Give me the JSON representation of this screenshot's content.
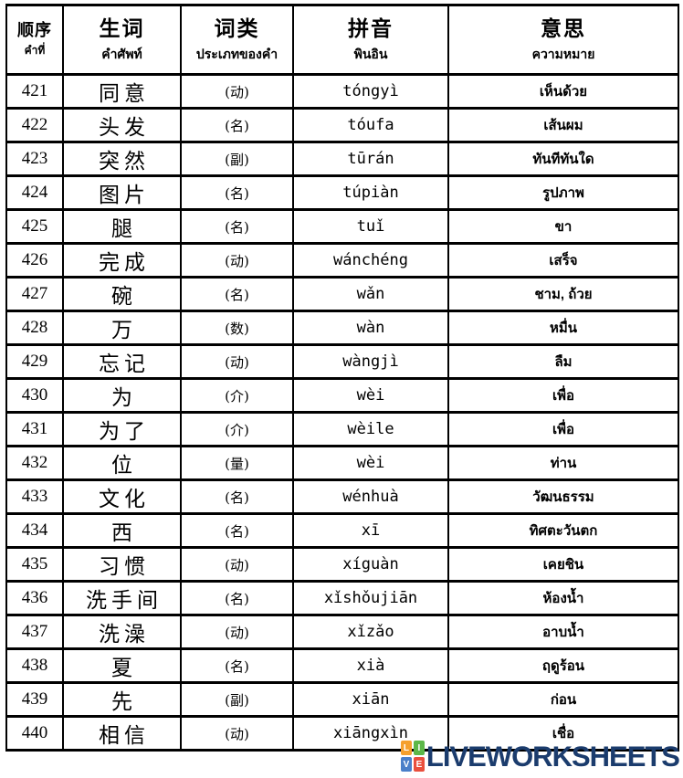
{
  "table": {
    "columns": [
      {
        "zh": "顺序",
        "th": "คำที่"
      },
      {
        "zh": "生词",
        "th": "คำศัพท์"
      },
      {
        "zh": "词类",
        "th": "ประเภทของคำ"
      },
      {
        "zh": "拼音",
        "th": "พินอิน"
      },
      {
        "zh": "意思",
        "th": "ความหมาย"
      }
    ],
    "rows": [
      {
        "no": "421",
        "word": "同意",
        "type": "(动)",
        "pinyin": "tóngyì",
        "meaning": "เห็นด้วย"
      },
      {
        "no": "422",
        "word": "头发",
        "type": "(名)",
        "pinyin": "tóufa",
        "meaning": "เส้นผม"
      },
      {
        "no": "423",
        "word": "突然",
        "type": "(副)",
        "pinyin": "tūrán",
        "meaning": "ทันทีทันใด"
      },
      {
        "no": "424",
        "word": "图片",
        "type": "(名)",
        "pinyin": "túpiàn",
        "meaning": "รูปภาพ"
      },
      {
        "no": "425",
        "word": "腿",
        "type": "(名)",
        "pinyin": "tuǐ",
        "meaning": "ขา"
      },
      {
        "no": "426",
        "word": "完成",
        "type": "(动)",
        "pinyin": "wánchéng",
        "meaning": "เสร็จ"
      },
      {
        "no": "427",
        "word": "碗",
        "type": "(名)",
        "pinyin": "wǎn",
        "meaning": "ชาม, ถ้วย"
      },
      {
        "no": "428",
        "word": "万",
        "type": "(数)",
        "pinyin": "wàn",
        "meaning": "หมื่น"
      },
      {
        "no": "429",
        "word": "忘记",
        "type": "(动)",
        "pinyin": "wàngjì",
        "meaning": "ลืม"
      },
      {
        "no": "430",
        "word": "为",
        "type": "(介)",
        "pinyin": "wèi",
        "meaning": "เพื่อ"
      },
      {
        "no": "431",
        "word": "为了",
        "type": "(介)",
        "pinyin": "wèile",
        "meaning": "เพื่อ"
      },
      {
        "no": "432",
        "word": "位",
        "type": "(量)",
        "pinyin": "wèi",
        "meaning": "ท่าน"
      },
      {
        "no": "433",
        "word": "文化",
        "type": "(名)",
        "pinyin": "wénhuà",
        "meaning": "วัฒนธรรม"
      },
      {
        "no": "434",
        "word": "西",
        "type": "(名)",
        "pinyin": "xī",
        "meaning": "ทิศตะวันตก"
      },
      {
        "no": "435",
        "word": "习惯",
        "type": "(动)",
        "pinyin": "xíguàn",
        "meaning": "เคยชิน"
      },
      {
        "no": "436",
        "word": "洗手间",
        "type": "(名)",
        "pinyin": "xǐshǒujiān",
        "meaning": "ห้องน้ำ"
      },
      {
        "no": "437",
        "word": "洗澡",
        "type": "(动)",
        "pinyin": "xǐzǎo",
        "meaning": "อาบน้ำ"
      },
      {
        "no": "438",
        "word": "夏",
        "type": "(名)",
        "pinyin": "xià",
        "meaning": "ฤดูร้อน"
      },
      {
        "no": "439",
        "word": "先",
        "type": "(副)",
        "pinyin": "xiān",
        "meaning": "ก่อน"
      },
      {
        "no": "440",
        "word": "相信",
        "type": "(动)",
        "pinyin": "xiāngxìn",
        "meaning": "เชื่อ"
      }
    ]
  },
  "footer": {
    "logo_text": "LIVEWORKSHEETS",
    "logo_text_color": "#1b3c6d",
    "logo_tiles": [
      {
        "letter": "L",
        "color": "#f5a02d"
      },
      {
        "letter": "I",
        "color": "#5cb849"
      },
      {
        "letter": "V",
        "color": "#4a7fc9"
      },
      {
        "letter": "E",
        "color": "#e94f3d"
      }
    ]
  }
}
